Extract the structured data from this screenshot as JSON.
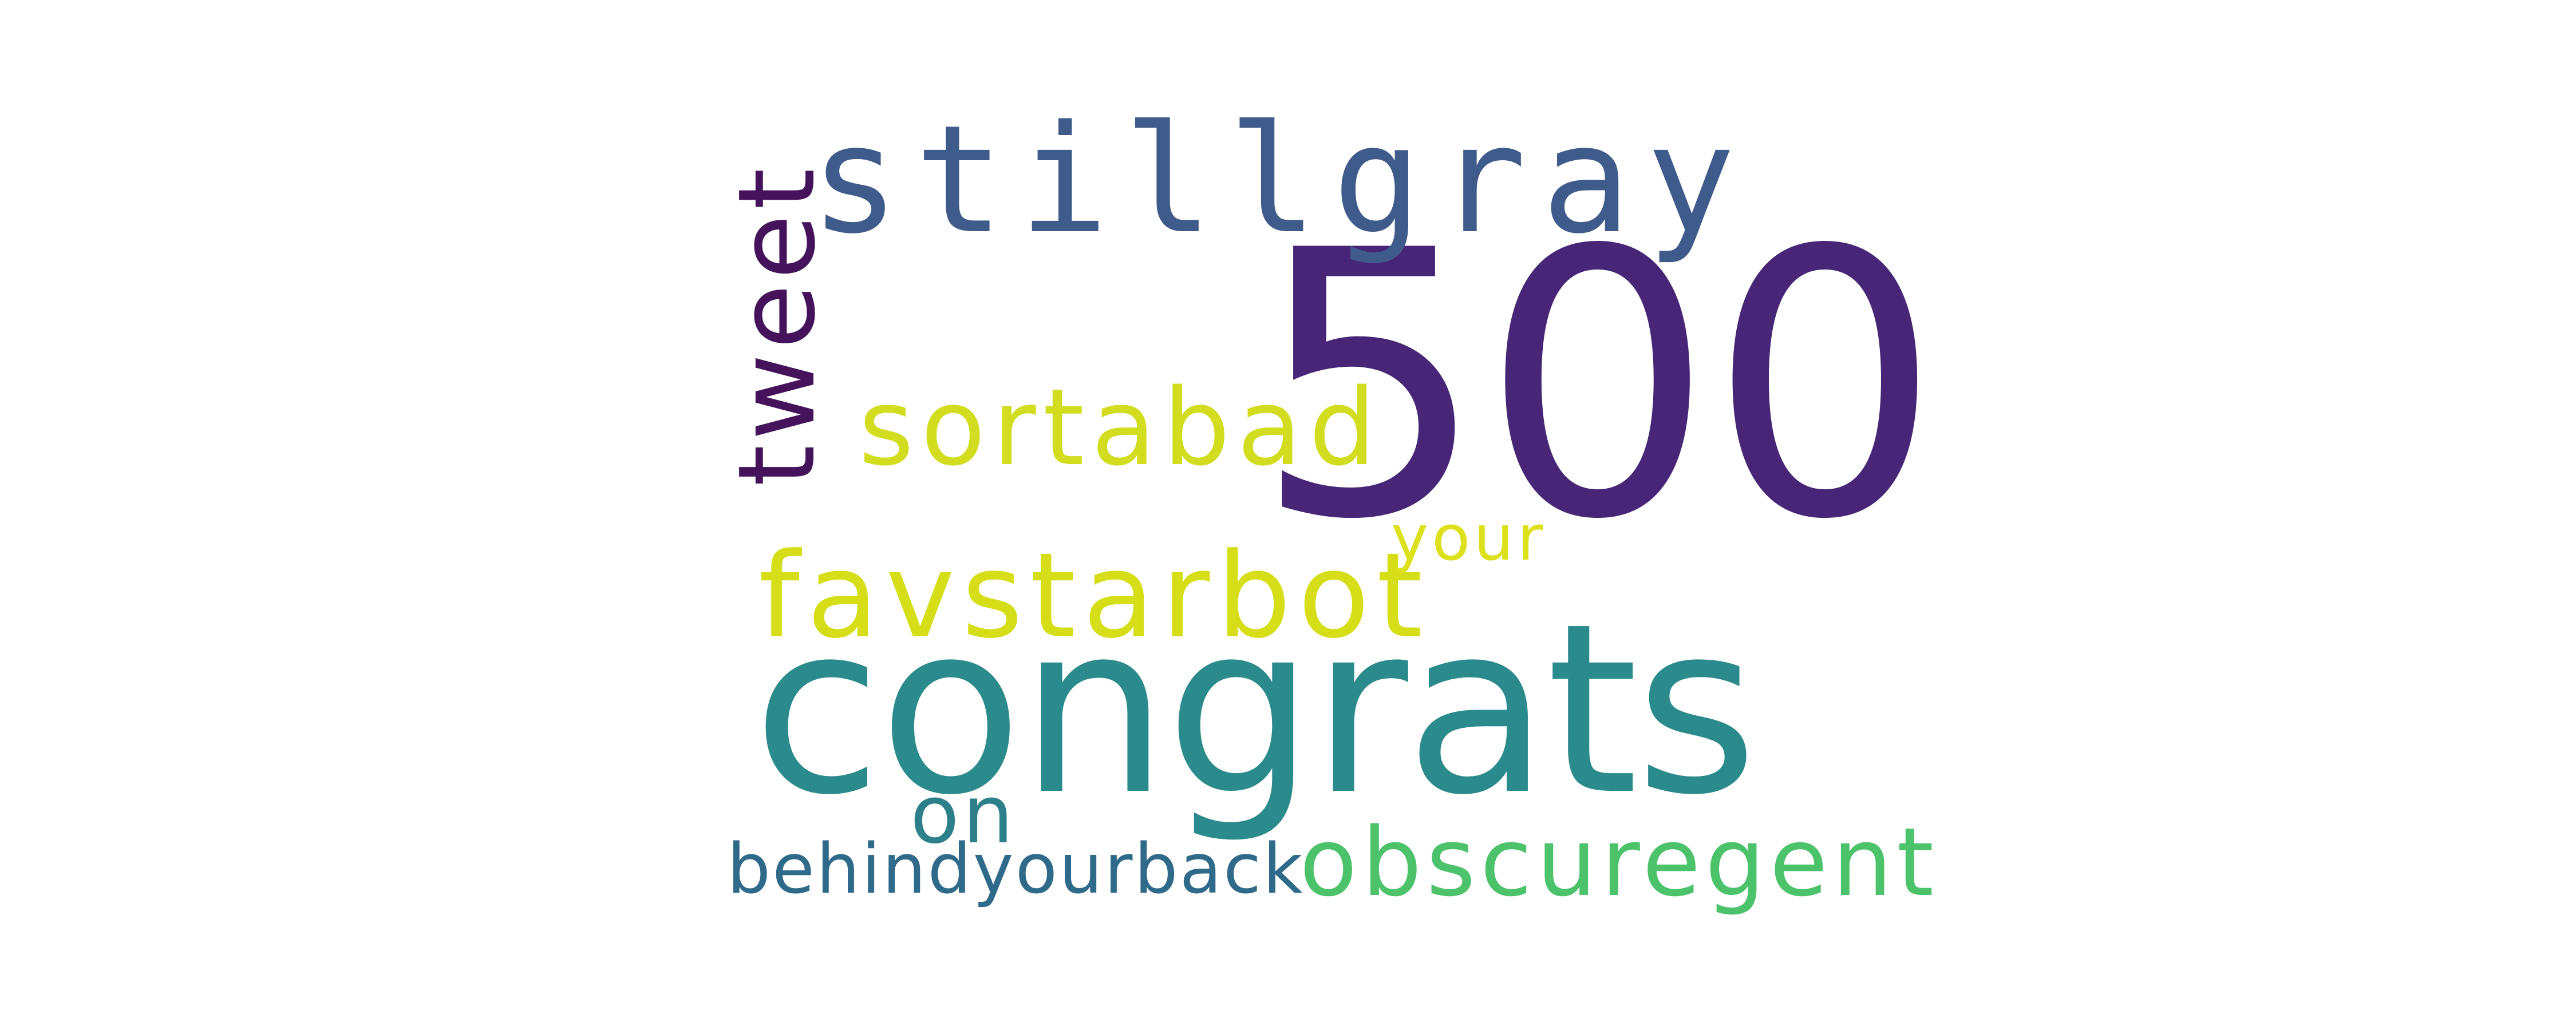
{
  "words": {
    "w500": {
      "text": "500",
      "color": "#482677"
    },
    "congrats": {
      "text": "congrats",
      "color": "#2a8a8c"
    },
    "stillgray": {
      "text": "stillgray",
      "color": "#3f5b8c"
    },
    "tweet": {
      "text": "tweet",
      "color": "#45135c"
    },
    "sortabad": {
      "text": "sortabad",
      "color": "#d3dd1f"
    },
    "favstarbot": {
      "text": "favstarbot",
      "color": "#d6de17"
    },
    "your": {
      "text": "your",
      "color": "#dce11c"
    },
    "on": {
      "text": "on",
      "color": "#2d7f8a"
    },
    "behindyourback": {
      "text": "behindyourback",
      "color": "#2f6a8b"
    },
    "obscuregent": {
      "text": "obscuregent",
      "color": "#4cc26b"
    }
  }
}
